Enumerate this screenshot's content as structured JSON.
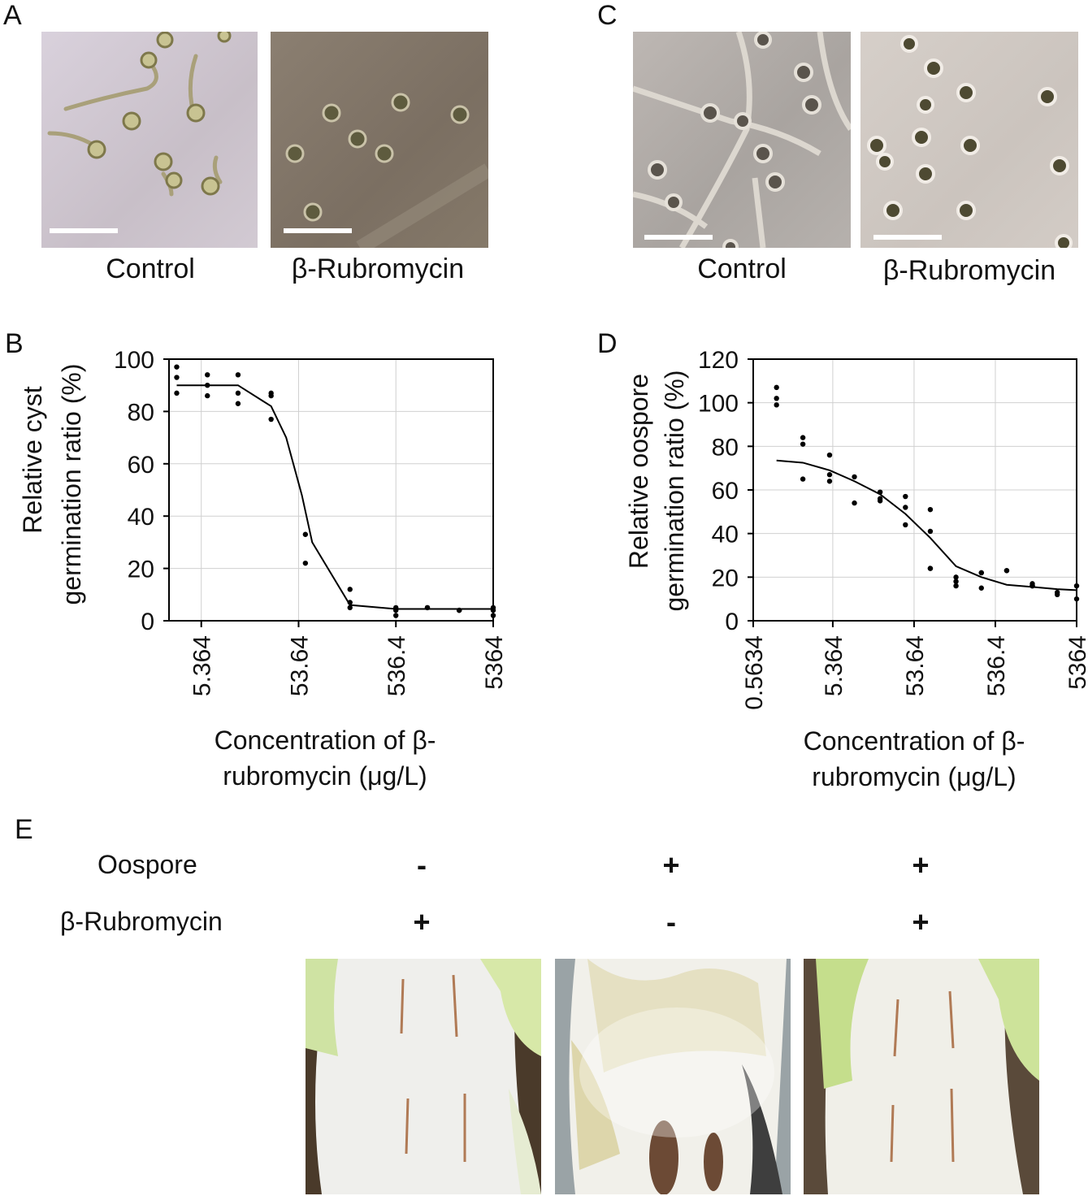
{
  "panels": {
    "A": {
      "letter": "A",
      "captions": [
        "Control",
        "β-Rubromycin"
      ]
    },
    "B": {
      "letter": "B"
    },
    "C": {
      "letter": "C",
      "captions": [
        "Control",
        "β-Rubromycin"
      ]
    },
    "D": {
      "letter": "D"
    },
    "E": {
      "letter": "E",
      "rows": [
        {
          "label": "Oospore",
          "signs": [
            "-",
            "+",
            "+"
          ]
        },
        {
          "label": "β-Rubromycin",
          "signs": [
            "+",
            "-",
            "+"
          ]
        }
      ]
    }
  },
  "chart_data": [
    {
      "type": "scatter",
      "panel": "B",
      "xlabel": "Concentration of β-rubromycin (μg/L)",
      "xlabel_lines": [
        "Concentration of β-",
        "rubromycin (μg/L)"
      ],
      "ylabel_lines": [
        "Relative cyst",
        "germination ratio (%)"
      ],
      "x_scale": "log",
      "xlim": [
        2.5,
        5364
      ],
      "ylim": [
        0,
        100
      ],
      "yticks": [
        0,
        20,
        40,
        60,
        80,
        100
      ],
      "xticks": [
        "5.364",
        "53.64",
        "536.4",
        "5364"
      ],
      "xtick_values": [
        5.364,
        53.64,
        536.4,
        5364
      ],
      "grid": true,
      "points": {
        "x": [
          3.0,
          3.0,
          3.0,
          6.2,
          6.2,
          6.2,
          12.8,
          12.8,
          12.8,
          28,
          28,
          28,
          63,
          63,
          181,
          181,
          181,
          536,
          536,
          536,
          1130,
          1130,
          2400,
          2400,
          5364,
          5364,
          5364
        ],
        "y": [
          97,
          93,
          87,
          94,
          90,
          86,
          94,
          87,
          83,
          87,
          86,
          77,
          33,
          22,
          12,
          7,
          5,
          5,
          4,
          2,
          5,
          5,
          4,
          4,
          5,
          4,
          2
        ]
      },
      "fit": {
        "x": [
          3.0,
          6.2,
          12.8,
          23,
          28,
          40,
          58,
          74,
          181,
          536,
          1130,
          2400,
          5364
        ],
        "y": [
          90,
          90,
          90,
          84,
          82,
          70,
          48,
          30,
          6,
          4.5,
          4.5,
          4.5,
          4.5
        ]
      }
    },
    {
      "type": "scatter",
      "panel": "D",
      "xlabel": "Concentration of β-rubromycin (μg/L)",
      "xlabel_lines": [
        "Concentration of β-",
        "rubromycin (μg/L)"
      ],
      "ylabel_lines": [
        "Relative oospore",
        "germination ratio (%)"
      ],
      "x_scale": "log",
      "xlim": [
        0.5634,
        5364
      ],
      "ylim": [
        0,
        120
      ],
      "yticks": [
        0,
        20,
        40,
        60,
        80,
        100,
        120
      ],
      "xticks": [
        "0.5634",
        "5.364",
        "53.64",
        "536.4",
        "5364"
      ],
      "xtick_values": [
        0.5634,
        5.364,
        53.64,
        536.4,
        5364
      ],
      "grid": true,
      "points": {
        "x": [
          1.09,
          1.09,
          1.09,
          2.3,
          2.3,
          2.3,
          4.9,
          4.9,
          4.9,
          9.9,
          9.9,
          20.5,
          20.5,
          20.5,
          42,
          42,
          42,
          85,
          85,
          85,
          85,
          176,
          176,
          176,
          361,
          361,
          361,
          740,
          740,
          1530,
          1530,
          1530,
          3100,
          3100,
          5364,
          5364
        ],
        "y": [
          107,
          102,
          99,
          84,
          81,
          65,
          76,
          67,
          64,
          66,
          54,
          59,
          56,
          55,
          57,
          52,
          44,
          51,
          41,
          24,
          24,
          20,
          18,
          16,
          22,
          22,
          15,
          23,
          23,
          17,
          16,
          16,
          13,
          12,
          16,
          10
        ]
      },
      "fit": {
        "x": [
          1.09,
          2.3,
          4.9,
          9.9,
          20.5,
          42,
          85,
          176,
          361,
          740,
          1530,
          3100,
          5364
        ],
        "y": [
          73.5,
          72.5,
          69,
          64,
          58,
          49,
          38,
          25,
          20,
          16.5,
          15.5,
          14.5,
          14
        ]
      }
    }
  ]
}
